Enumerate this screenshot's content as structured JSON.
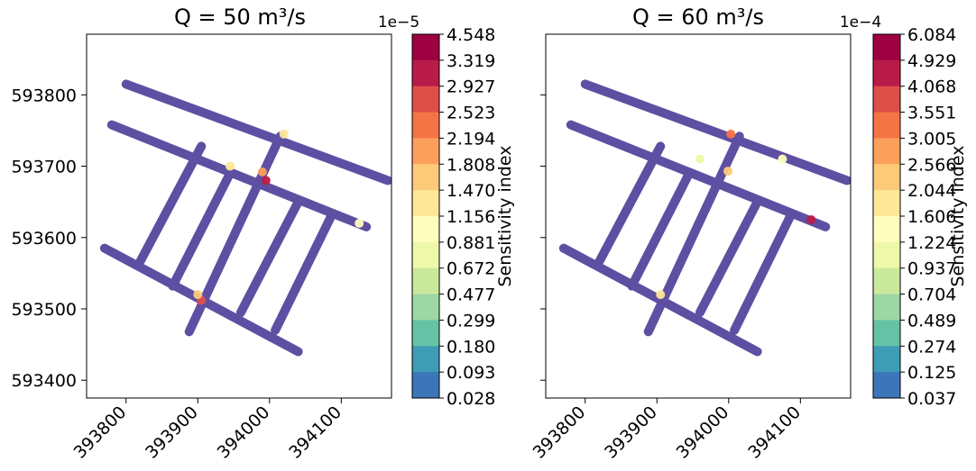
{
  "chart_data": [
    {
      "type": "heatmap",
      "title": "Q = 50 m³/s",
      "xticks": [
        "393800",
        "393900",
        "394000",
        "394100"
      ],
      "yticks": [
        "593800",
        "593700",
        "593600",
        "593500",
        "593400"
      ],
      "xlim": [
        393745,
        394170
      ],
      "ylim": [
        593375,
        593885
      ],
      "colorbar": {
        "label": "Sensitivity index",
        "exponent_label": "1e−5",
        "ticks": [
          "4.548",
          "3.319",
          "2.927",
          "2.523",
          "2.194",
          "1.808",
          "1.470",
          "1.156",
          "0.881",
          "0.672",
          "0.477",
          "0.299",
          "0.180",
          "0.093",
          "0.028"
        ]
      },
      "channels": [
        {
          "from": [
            393800,
            593815
          ],
          "to": [
            394165,
            593680
          ]
        },
        {
          "from": [
            393780,
            593758
          ],
          "to": [
            394135,
            593615
          ]
        },
        {
          "from": [
            393770,
            593585
          ],
          "to": [
            394040,
            593440
          ]
        },
        {
          "from": [
            393905,
            593728
          ],
          "to": [
            393820,
            593567
          ]
        },
        {
          "from": [
            393945,
            593690
          ],
          "to": [
            393865,
            593532
          ]
        },
        {
          "from": [
            394015,
            593742
          ],
          "to": [
            393888,
            593468
          ]
        },
        {
          "from": [
            394040,
            593650
          ],
          "to": [
            393960,
            593495
          ]
        },
        {
          "from": [
            394085,
            593628
          ],
          "to": [
            394008,
            593470
          ]
        }
      ],
      "hotspots": [
        {
          "x": 393995,
          "y": 593680,
          "value": 3.8
        },
        {
          "x": 393990,
          "y": 593692,
          "value": 2.4
        },
        {
          "x": 393905,
          "y": 593512,
          "value": 3.2
        },
        {
          "x": 393900,
          "y": 593520,
          "value": 2.0
        },
        {
          "x": 394020,
          "y": 593745,
          "value": 1.5
        },
        {
          "x": 394125,
          "y": 593620,
          "value": 1.2
        },
        {
          "x": 393945,
          "y": 593700,
          "value": 1.6
        }
      ]
    },
    {
      "type": "heatmap",
      "title": "Q = 60 m³/s",
      "xticks": [
        "393800",
        "393900",
        "394000",
        "394100"
      ],
      "yticks": [
        "593800",
        "593700",
        "593600",
        "593500",
        "593400"
      ],
      "xlim": [
        393745,
        394170
      ],
      "ylim": [
        593375,
        593885
      ],
      "colorbar": {
        "label": "Sensitivity index",
        "exponent_label": "1e−4",
        "ticks": [
          "6.084",
          "4.929",
          "4.068",
          "3.551",
          "3.005",
          "2.566",
          "2.044",
          "1.606",
          "1.224",
          "0.937",
          "0.704",
          "0.489",
          "0.274",
          "0.125",
          "0.037"
        ]
      },
      "channels": [
        {
          "from": [
            393800,
            593815
          ],
          "to": [
            394165,
            593680
          ]
        },
        {
          "from": [
            393780,
            593758
          ],
          "to": [
            394135,
            593615
          ]
        },
        {
          "from": [
            393770,
            593585
          ],
          "to": [
            394040,
            593440
          ]
        },
        {
          "from": [
            393905,
            593728
          ],
          "to": [
            393820,
            593567
          ]
        },
        {
          "from": [
            393945,
            593690
          ],
          "to": [
            393865,
            593532
          ]
        },
        {
          "from": [
            394015,
            593742
          ],
          "to": [
            393888,
            593468
          ]
        },
        {
          "from": [
            394040,
            593650
          ],
          "to": [
            393960,
            593495
          ]
        },
        {
          "from": [
            394085,
            593628
          ],
          "to": [
            394008,
            593470
          ]
        }
      ],
      "hotspots": [
        {
          "x": 394115,
          "y": 593625,
          "value": 5.0
        },
        {
          "x": 394003,
          "y": 593745,
          "value": 4.0
        },
        {
          "x": 393999,
          "y": 593693,
          "value": 3.0
        },
        {
          "x": 393905,
          "y": 593520,
          "value": 2.2
        },
        {
          "x": 394075,
          "y": 593710,
          "value": 1.8
        },
        {
          "x": 393960,
          "y": 593710,
          "value": 1.6
        }
      ]
    }
  ]
}
